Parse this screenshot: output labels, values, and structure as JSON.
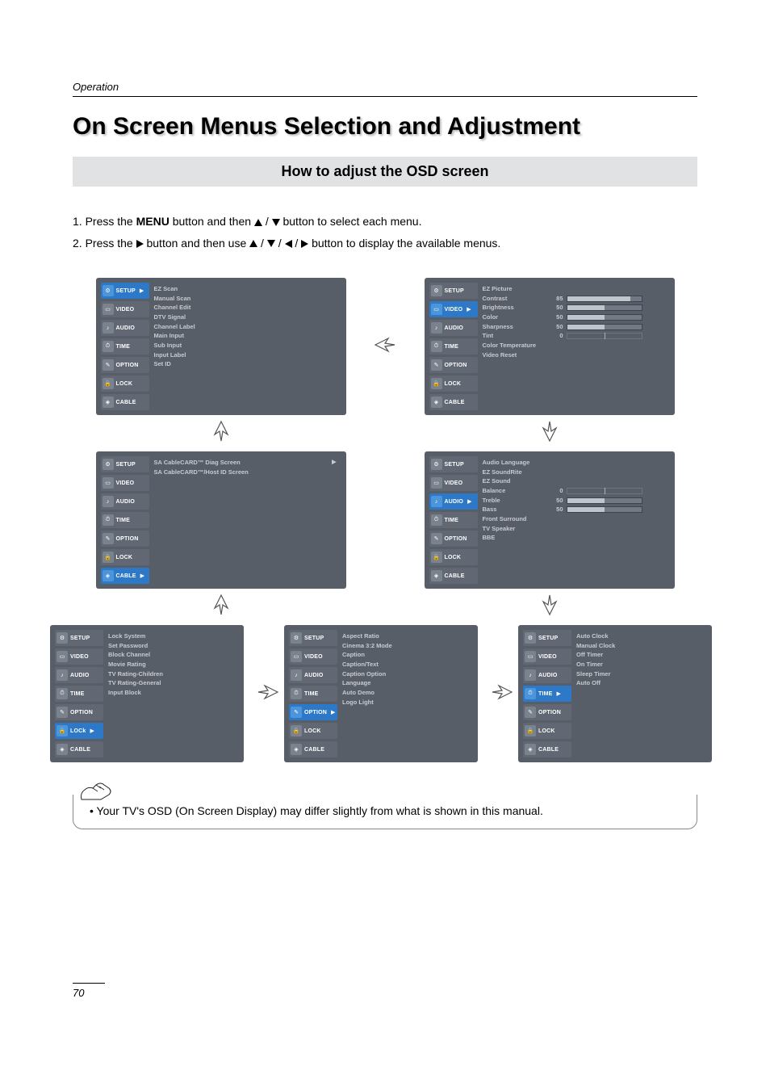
{
  "page": {
    "section_label": "Operation",
    "main_title": "On Screen Menus Selection and Adjustment",
    "subtitle": "How to adjust the OSD screen",
    "instruction_1_pre": "1. Press the ",
    "menu_word": "MENU",
    "instruction_1_post": " button and then ",
    "slash": " / ",
    "instruction_1_tail": "  button to select each menu.",
    "instruction_2_pre": "2. Press the ",
    "instruction_2_mid": " button and then use ",
    "instruction_2_tail": " button to display the available menus.",
    "note_text": "• Your TV's OSD (On Screen Display) may differ slightly from what is shown in this manual.",
    "page_number": "70"
  },
  "sidebar_labels": [
    "SETUP",
    "VIDEO",
    "AUDIO",
    "TIME",
    "OPTION",
    "LOCK",
    "CABLE"
  ],
  "sidebar_lock_variant": "LOCk",
  "panel_colors": {
    "panel_bg": "#585e68",
    "active_bg": "#2d79c7",
    "inactive_bg": "#616873",
    "text": "#c7cad0"
  },
  "panels": {
    "setup": {
      "active": "SETUP",
      "items": [
        "EZ Scan",
        "Manual Scan",
        "Channel Edit",
        "DTV Signal",
        "Channel Label",
        "Main Input",
        "Sub Input",
        "Input Label",
        "Set ID"
      ]
    },
    "video": {
      "active": "VIDEO",
      "sliders": [
        {
          "label": "EZ Picture",
          "value": "",
          "pct": null
        },
        {
          "label": "Contrast",
          "value": "85",
          "pct": 85
        },
        {
          "label": "Brightness",
          "value": "50",
          "pct": 50
        },
        {
          "label": "Color",
          "value": "50",
          "pct": 50
        },
        {
          "label": "Sharpness",
          "value": "50",
          "pct": 50
        },
        {
          "label": "Tint",
          "value": "0",
          "pct": null,
          "centered": true
        }
      ],
      "extra": [
        "Color Temperature",
        "Video Reset"
      ]
    },
    "audio": {
      "active": "AUDIO",
      "items_top": [
        "Audio Language",
        "EZ SoundRite",
        "EZ Sound"
      ],
      "sliders": [
        {
          "label": "Balance",
          "value": "0",
          "pct": null,
          "centered": true
        },
        {
          "label": "Treble",
          "value": "50",
          "pct": 50
        },
        {
          "label": "Bass",
          "value": "50",
          "pct": 50
        }
      ],
      "items_bottom": [
        "Front Surround",
        "TV Speaker",
        "BBE"
      ]
    },
    "time": {
      "active": "TIME",
      "items": [
        "Auto Clock",
        "Manual Clock",
        "Off Timer",
        "On Timer",
        "Sleep Timer",
        "Auto Off"
      ]
    },
    "option": {
      "active": "OPTION",
      "items": [
        "Aspect Ratio",
        "Cinema 3:2 Mode",
        "Caption",
        "Caption/Text",
        "Caption Option",
        "Language",
        "Auto Demo",
        "Logo Light"
      ]
    },
    "lock": {
      "active": "LOCk",
      "items": [
        "Lock System",
        "Set Password",
        "Block Channel",
        "Movie Rating",
        "TV Rating-Children",
        "TV Rating-General",
        "Input Block"
      ]
    },
    "cable": {
      "active": "CABLE",
      "items": [
        "SA CableCARD™ Diag Screen",
        "SA CableCARD™/Host ID Screen"
      ]
    }
  }
}
